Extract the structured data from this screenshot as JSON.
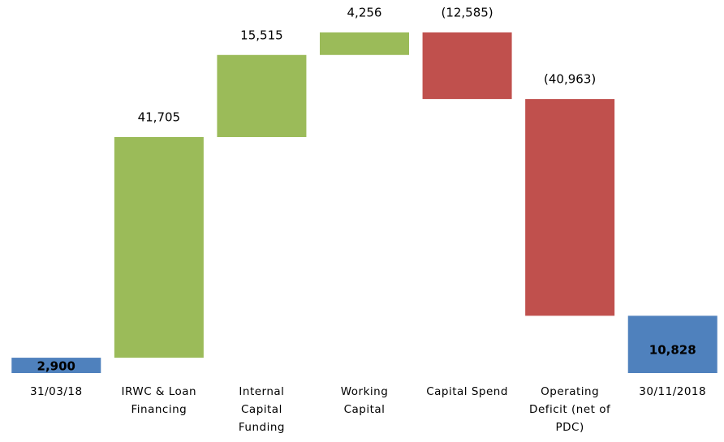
{
  "chart_data": {
    "type": "waterfall",
    "categories": [
      "31/03/18",
      "IRWC & Loan Financing",
      "Internal Capital Funding",
      "Working Capital",
      "Capital Spend",
      "Operating Deficit (net of PDC)",
      "30/11/2018"
    ],
    "values": [
      2900,
      41705,
      15515,
      4256,
      -12585,
      -40963,
      10828
    ],
    "value_labels": [
      "2,900",
      "41,705",
      "15,515",
      "4,256",
      "(12,585)",
      "(40,963)",
      "10,828"
    ],
    "measures": [
      "absolute",
      "relative",
      "relative",
      "relative",
      "relative",
      "relative",
      "total"
    ],
    "colors": [
      "#4f81bd",
      "#9bbb59",
      "#9bbb59",
      "#9bbb59",
      "#c0504d",
      "#c0504d",
      "#4f81bd"
    ]
  }
}
